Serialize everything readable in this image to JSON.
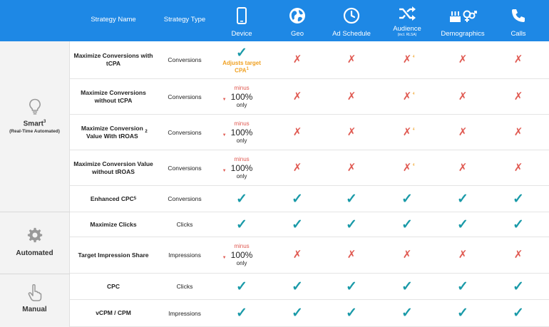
{
  "header": {
    "strategy_name": "Strategy Name",
    "strategy_type": "Strategy Type",
    "columns": [
      {
        "label": "Device",
        "icon": "phone-icon"
      },
      {
        "label": "Geo",
        "icon": "globe-icon"
      },
      {
        "label": "Ad Schedule",
        "icon": "clock-icon"
      },
      {
        "label": "Audience",
        "sub": "(incl. RLSA)",
        "icon": "shuffle-icon"
      },
      {
        "label": "Demographics",
        "icon": "demographics-icon"
      },
      {
        "label": "Calls",
        "icon": "phone-call-icon"
      }
    ]
  },
  "groups": [
    {
      "name": "Smart",
      "sup": "3",
      "sub": "(Real-Time Automated)",
      "icon": "lightbulb-icon"
    },
    {
      "name": "Automated",
      "sup": "",
      "sub": "",
      "icon": "gear-icon"
    },
    {
      "name": "Manual",
      "sup": "",
      "sub": "",
      "icon": "hand-pointer-icon"
    }
  ],
  "symbols": {
    "check": "✓",
    "cross": "✗",
    "triangle": "▼",
    "note4": "4"
  },
  "cell_text": {
    "adjusts": "Adjusts target",
    "adjusts2": "CPA",
    "adjusts_sup": "1",
    "minus": "minus",
    "pct": "100%",
    "only": "only"
  },
  "rows": [
    {
      "name": "Maximize Conversions with tCPA",
      "type": "Conversions",
      "cells": [
        "adjusts",
        "cross",
        "cross",
        "cross4",
        "cross",
        "cross"
      ]
    },
    {
      "name": "Maximize Conversions without tCPA",
      "type": "Conversions",
      "cells": [
        "minus",
        "cross",
        "cross",
        "cross4",
        "cross",
        "cross"
      ]
    },
    {
      "name": "Maximize Conversion Value With tROAS",
      "name_sup": "2",
      "type": "Conversions",
      "cells": [
        "minus",
        "cross",
        "cross",
        "cross4",
        "cross",
        "cross"
      ]
    },
    {
      "name": "Maximize Conversion Value without tROAS",
      "type": "Conversions",
      "cells": [
        "minus",
        "cross",
        "cross",
        "cross4",
        "cross",
        "cross"
      ]
    },
    {
      "name": "Enhanced CPC",
      "name_sup": "5",
      "type": "Conversions",
      "cells": [
        "check",
        "check",
        "check",
        "check",
        "check",
        "check"
      ]
    },
    {
      "name": "Maximize Clicks",
      "type": "Clicks",
      "cells": [
        "check",
        "check",
        "check",
        "check",
        "check",
        "check"
      ]
    },
    {
      "name": "Target Impression Share",
      "type": "Impressions",
      "cells": [
        "minus",
        "cross",
        "cross",
        "cross",
        "cross",
        "cross"
      ]
    },
    {
      "name": "CPC",
      "type": "Clicks",
      "cells": [
        "check",
        "check",
        "check",
        "check",
        "check",
        "check"
      ]
    },
    {
      "name": "vCPM / CPM",
      "type": "Impressions",
      "cells": [
        "check",
        "check",
        "check",
        "check",
        "check",
        "check"
      ]
    }
  ]
}
